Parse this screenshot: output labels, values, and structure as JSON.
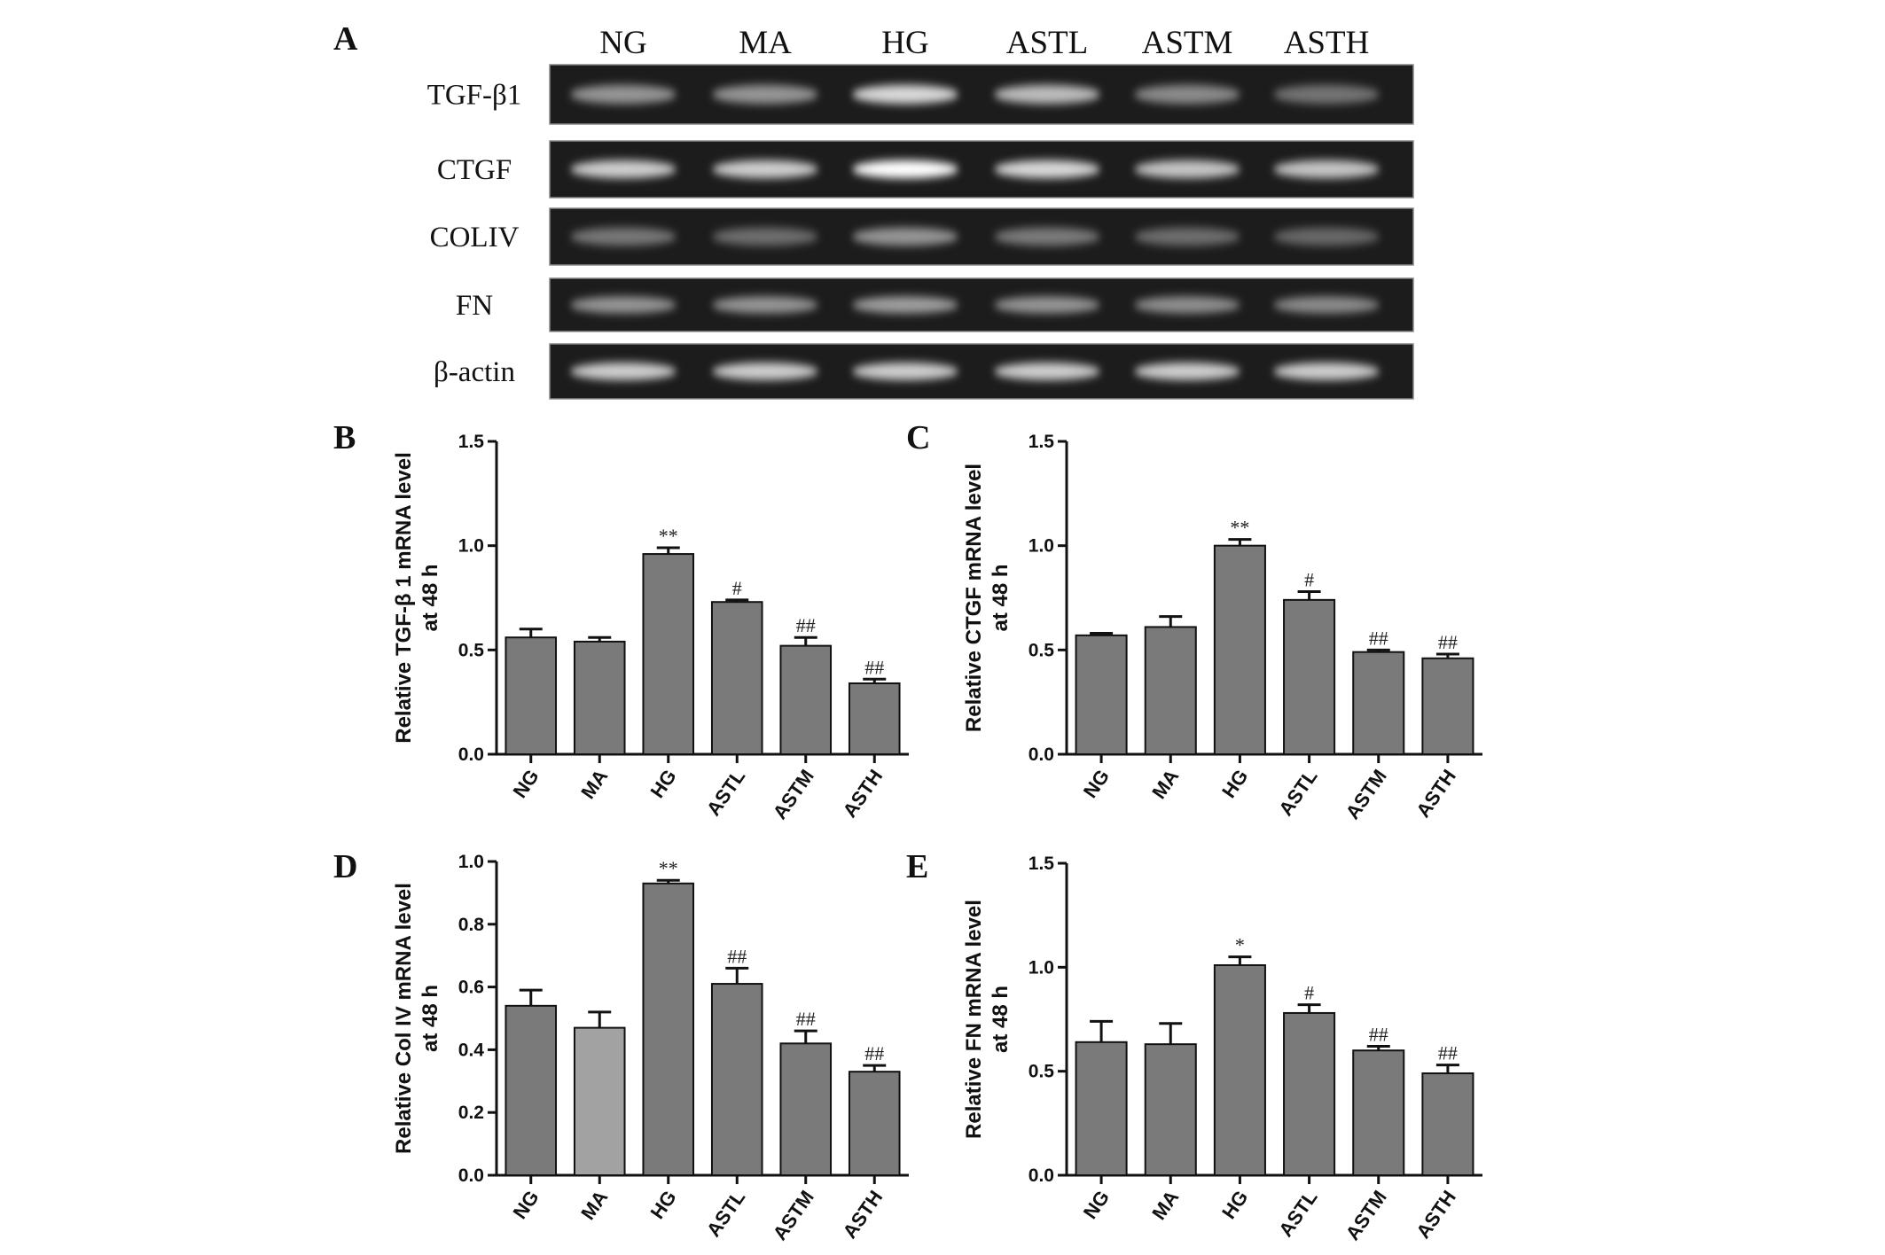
{
  "figure": {
    "gel_panel_letter": "A",
    "lanes": [
      "NG",
      "MA",
      "HG",
      "ASTL",
      "ASTM",
      "ASTH"
    ],
    "gel_rows": [
      {
        "label": "TGF-β1",
        "intensity": [
          0.45,
          0.45,
          0.8,
          0.65,
          0.4,
          0.28
        ]
      },
      {
        "label": "CTGF",
        "intensity": [
          0.75,
          0.75,
          1.0,
          0.8,
          0.7,
          0.7
        ]
      },
      {
        "label": "COLIV",
        "intensity": [
          0.3,
          0.25,
          0.45,
          0.32,
          0.25,
          0.22
        ]
      },
      {
        "label": "FN",
        "intensity": [
          0.45,
          0.45,
          0.5,
          0.45,
          0.42,
          0.4
        ]
      },
      {
        "label": "β-actin",
        "intensity": [
          0.75,
          0.75,
          0.75,
          0.75,
          0.75,
          0.75
        ]
      }
    ]
  },
  "chart_data": [
    {
      "panel": "B",
      "type": "bar",
      "categories": [
        "NG",
        "MA",
        "HG",
        "ASTL",
        "ASTM",
        "ASTH"
      ],
      "values": [
        0.56,
        0.54,
        0.96,
        0.73,
        0.52,
        0.34
      ],
      "errors": [
        0.04,
        0.02,
        0.03,
        0.01,
        0.04,
        0.02
      ],
      "significance": [
        "",
        "",
        "**",
        "#",
        "##",
        "##"
      ],
      "ylabel_lines": [
        "Relative TGF-β 1 mRNA level",
        "at 48 h"
      ],
      "ylim": [
        0,
        1.5
      ],
      "yticks": [
        "0.0",
        "0.5",
        "1.0",
        "1.5"
      ],
      "bar_colors": [
        "#7a7a7a",
        "#7a7a7a",
        "#7a7a7a",
        "#7a7a7a",
        "#7a7a7a",
        "#7a7a7a"
      ]
    },
    {
      "panel": "C",
      "type": "bar",
      "categories": [
        "NG",
        "MA",
        "HG",
        "ASTL",
        "ASTM",
        "ASTH"
      ],
      "values": [
        0.57,
        0.61,
        1.0,
        0.74,
        0.49,
        0.46
      ],
      "errors": [
        0.01,
        0.05,
        0.03,
        0.04,
        0.01,
        0.02
      ],
      "significance": [
        "",
        "",
        "**",
        "#",
        "##",
        "##"
      ],
      "ylabel_lines": [
        "Relative CTGF  mRNA level",
        "at 48 h"
      ],
      "ylim": [
        0,
        1.5
      ],
      "yticks": [
        "0.0",
        "0.5",
        "1.0",
        "1.5"
      ],
      "bar_colors": [
        "#7a7a7a",
        "#7a7a7a",
        "#7a7a7a",
        "#7a7a7a",
        "#7a7a7a",
        "#7a7a7a"
      ]
    },
    {
      "panel": "D",
      "type": "bar",
      "categories": [
        "NG",
        "MA",
        "HG",
        "ASTL",
        "ASTM",
        "ASTH"
      ],
      "values": [
        0.54,
        0.47,
        0.93,
        0.61,
        0.42,
        0.33
      ],
      "errors": [
        0.05,
        0.05,
        0.01,
        0.05,
        0.04,
        0.02
      ],
      "significance": [
        "",
        "",
        "**",
        "##",
        "##",
        "##"
      ],
      "ylabel_lines": [
        "Relative Col IV  mRNA level",
        "at 48 h"
      ],
      "ylim": [
        0,
        1.0
      ],
      "yticks": [
        "0.0",
        "0.2",
        "0.4",
        "0.6",
        "0.8",
        "1.0"
      ],
      "bar_colors": [
        "#7a7a7a",
        "#a2a2a2",
        "#7a7a7a",
        "#7a7a7a",
        "#7a7a7a",
        "#7a7a7a"
      ]
    },
    {
      "panel": "E",
      "type": "bar",
      "categories": [
        "NG",
        "MA",
        "HG",
        "ASTL",
        "ASTM",
        "ASTH"
      ],
      "values": [
        0.64,
        0.63,
        1.01,
        0.78,
        0.6,
        0.49
      ],
      "errors": [
        0.1,
        0.1,
        0.04,
        0.04,
        0.02,
        0.04
      ],
      "significance": [
        "",
        "",
        "*",
        "#",
        "##",
        "##"
      ],
      "ylabel_lines": [
        "Relative FN  mRNA level",
        "at 48 h"
      ],
      "ylim": [
        0,
        1.5
      ],
      "yticks": [
        "0.0",
        "0.5",
        "1.0",
        "1.5"
      ],
      "bar_colors": [
        "#7a7a7a",
        "#7a7a7a",
        "#7a7a7a",
        "#7a7a7a",
        "#7a7a7a",
        "#7a7a7a"
      ]
    }
  ]
}
